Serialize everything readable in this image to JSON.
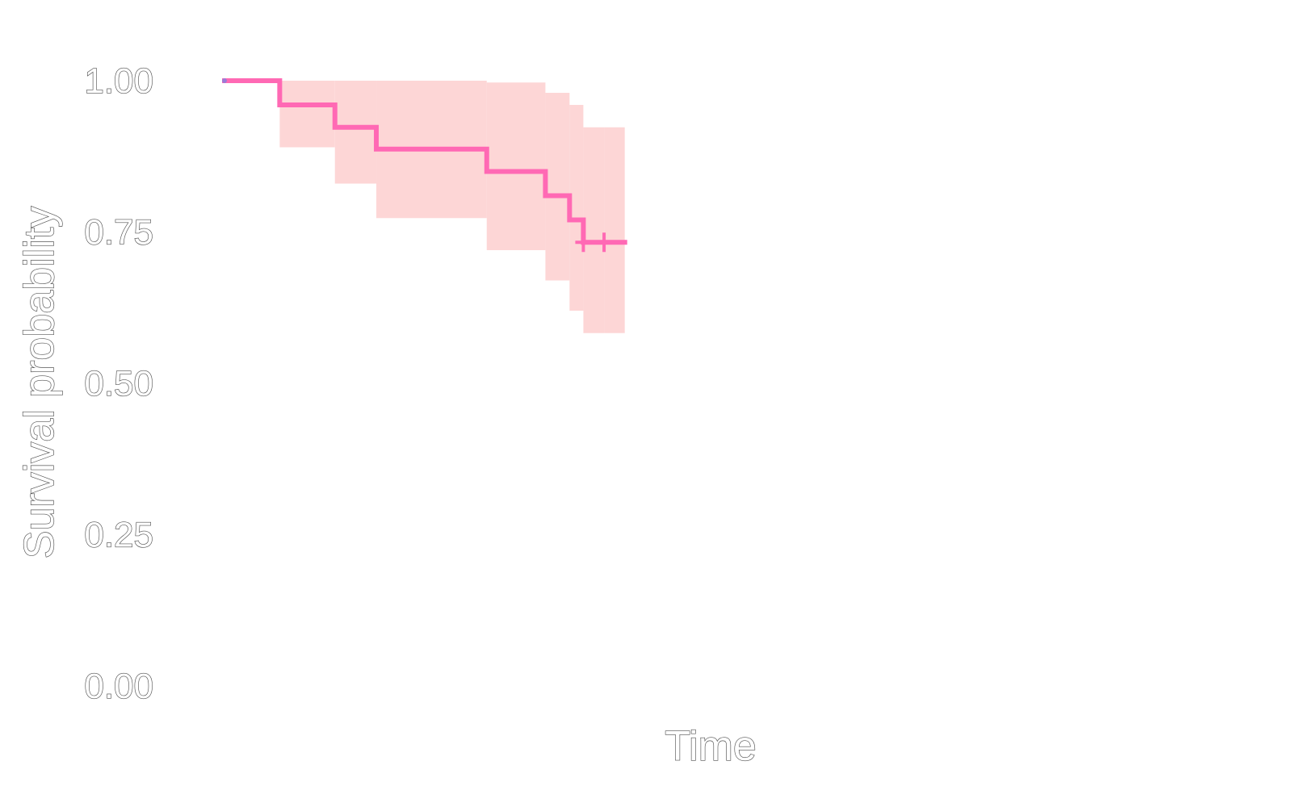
{
  "chart_data": {
    "type": "line",
    "subtype": "kaplan-meier",
    "xlabel": "Time",
    "ylabel": "Survival probability",
    "ylim": [
      0,
      1
    ],
    "xlim": [
      0,
      30
    ],
    "yticks": [
      "0.00",
      "0.25",
      "0.50",
      "0.75",
      "1.00"
    ],
    "grid": false,
    "legend": "none",
    "colors": {
      "curve": "#ff69b4",
      "band": "#fdd6d6",
      "start_marker": "#9b7bd8",
      "text_outline": "#4f4f4f"
    },
    "series": [
      {
        "steps": [
          {
            "x": 0.0,
            "y": 1.0,
            "lower": 1.0,
            "upper": 1.0
          },
          {
            "x": 0.8,
            "y": 1.0,
            "lower": 1.0,
            "upper": 1.0
          },
          {
            "x": 1.6,
            "y": 0.96,
            "lower": 0.89,
            "upper": 1.0
          },
          {
            "x": 3.2,
            "y": 0.923,
            "lower": 0.83,
            "upper": 1.0
          },
          {
            "x": 4.4,
            "y": 0.887,
            "lower": 0.773,
            "upper": 1.0
          },
          {
            "x": 7.6,
            "y": 0.85,
            "lower": 0.72,
            "upper": 0.997
          },
          {
            "x": 9.3,
            "y": 0.81,
            "lower": 0.67,
            "upper": 0.98
          },
          {
            "x": 10.0,
            "y": 0.77,
            "lower": 0.62,
            "upper": 0.96
          },
          {
            "x": 10.4,
            "y": 0.733,
            "lower": 0.583,
            "upper": 0.923
          },
          {
            "x": 11.0,
            "y": 0.733,
            "lower": 0.583,
            "upper": 0.923
          }
        ],
        "censored": [
          {
            "x": 10.4,
            "y": 0.733
          },
          {
            "x": 11.0,
            "y": 0.733
          }
        ],
        "curve_end_x": 11.6
      }
    ]
  }
}
